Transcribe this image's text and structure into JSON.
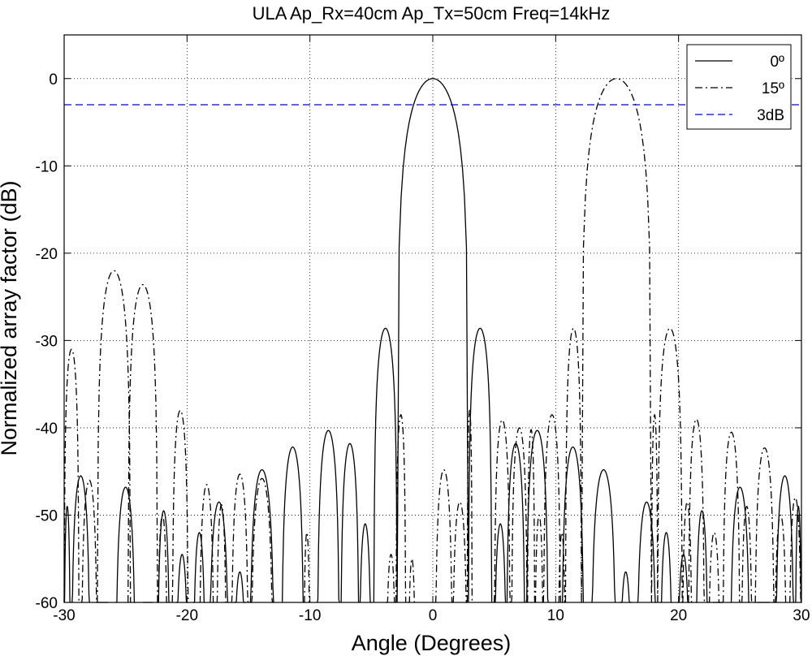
{
  "chart_data": {
    "type": "line",
    "title": "ULA Ap_Rx=40cm Ap_Tx=50cm Freq=14kHz",
    "xlabel": "Angle (Degrees)",
    "ylabel": "Normalized array factor (dB)",
    "xlim": [
      -30,
      30
    ],
    "ylim": [
      -60,
      5
    ],
    "xticks": [
      -30,
      -20,
      -10,
      0,
      10,
      20,
      30
    ],
    "yticks": [
      -60,
      -50,
      -40,
      -30,
      -20,
      -10,
      0
    ],
    "grid": true,
    "legend_position": "top-right",
    "series": [
      {
        "name": "0º",
        "style": "solid",
        "color": "#000000",
        "lobes": [
          [
            -30.0,
            -29.5,
            -49
          ],
          [
            -29.4,
            -27.9,
            -45.5
          ],
          [
            -27.4,
            -26.4,
            -60
          ],
          [
            -25.8,
            -24.2,
            -46.8
          ],
          [
            -23.6,
            -22.8,
            -60
          ],
          [
            -22.4,
            -21.4,
            -49.5
          ],
          [
            -20.9,
            -19.9,
            -54.5
          ],
          [
            -19.5,
            -18.5,
            -52
          ],
          [
            -18.2,
            -16.6,
            -48.5
          ],
          [
            -16.2,
            -15.2,
            -56.5
          ],
          [
            -14.9,
            -12.9,
            -44.8
          ],
          [
            -12.3,
            -10.5,
            -42.2
          ],
          [
            -9.4,
            -7.6,
            -40.3
          ],
          [
            -7.5,
            -6.0,
            -41.8
          ],
          [
            -6.0,
            -5.0,
            -51
          ],
          [
            -4.8,
            -2.9,
            -28.6
          ],
          [
            -2.9,
            2.9,
            0
          ],
          [
            2.9,
            4.8,
            -28.6
          ],
          [
            5.0,
            6.0,
            -51
          ],
          [
            6.0,
            7.5,
            -41.8
          ],
          [
            7.6,
            9.4,
            -40.3
          ],
          [
            10.5,
            12.3,
            -42.2
          ],
          [
            12.9,
            14.9,
            -44.8
          ],
          [
            15.2,
            16.2,
            -56.5
          ],
          [
            16.6,
            18.2,
            -48.5
          ],
          [
            18.5,
            19.5,
            -52
          ],
          [
            19.9,
            20.9,
            -54.5
          ],
          [
            21.4,
            22.4,
            -49.5
          ],
          [
            22.8,
            23.6,
            -60
          ],
          [
            24.2,
            25.8,
            -46.8
          ],
          [
            26.4,
            27.4,
            -60
          ],
          [
            27.9,
            29.4,
            -45.5
          ],
          [
            29.5,
            30.0,
            -49
          ]
        ]
      },
      {
        "name": "15º",
        "style": "dashdot",
        "color": "#000000",
        "lobes": [
          [
            -30.0,
            -28.8,
            -31
          ],
          [
            -28.6,
            -27.3,
            -46
          ],
          [
            -27.3,
            -24.6,
            -22
          ],
          [
            -24.8,
            -22.4,
            -23.6
          ],
          [
            -22.4,
            -21.6,
            -50
          ],
          [
            -21.2,
            -19.9,
            -38
          ],
          [
            -19.0,
            -17.8,
            -46.5
          ],
          [
            -17.6,
            -16.8,
            -48.8
          ],
          [
            -16.4,
            -15.0,
            -45.3
          ],
          [
            -14.8,
            -13.0,
            -45.8
          ],
          [
            -10.5,
            -10.0,
            -52
          ],
          [
            -3.8,
            -3.0,
            -54.5
          ],
          [
            -3.0,
            -2.2,
            -38.5
          ],
          [
            -2.0,
            -1.4,
            -55
          ],
          [
            0.2,
            1.6,
            -44.8
          ],
          [
            1.6,
            2.8,
            -48.5
          ],
          [
            2.8,
            3.2,
            -38
          ],
          [
            5.0,
            6.3,
            -39.1
          ],
          [
            6.4,
            7.7,
            -40
          ],
          [
            7.7,
            8.3,
            -40.2
          ],
          [
            8.3,
            9.0,
            -50
          ],
          [
            9.0,
            10.4,
            -38.5
          ],
          [
            10.2,
            10.8,
            -52
          ],
          [
            10.8,
            12.1,
            -28.6
          ],
          [
            12.1,
            17.8,
            0
          ],
          [
            17.8,
            18.3,
            -38.5
          ],
          [
            18.3,
            20.3,
            -28.6
          ],
          [
            20.3,
            21.1,
            -48.5
          ],
          [
            20.8,
            22.1,
            -39
          ],
          [
            22.4,
            23.4,
            -52
          ],
          [
            23.6,
            25.0,
            -40.5
          ],
          [
            25.1,
            26.0,
            -49
          ],
          [
            26.2,
            27.8,
            -42.3
          ],
          [
            27.8,
            28.8,
            -50
          ],
          [
            29.0,
            30.0,
            -48
          ]
        ]
      },
      {
        "name": "3dB",
        "style": "dashed",
        "color": "#0000ff",
        "x": [
          -30,
          30
        ],
        "y": [
          -3,
          -3
        ]
      }
    ]
  }
}
